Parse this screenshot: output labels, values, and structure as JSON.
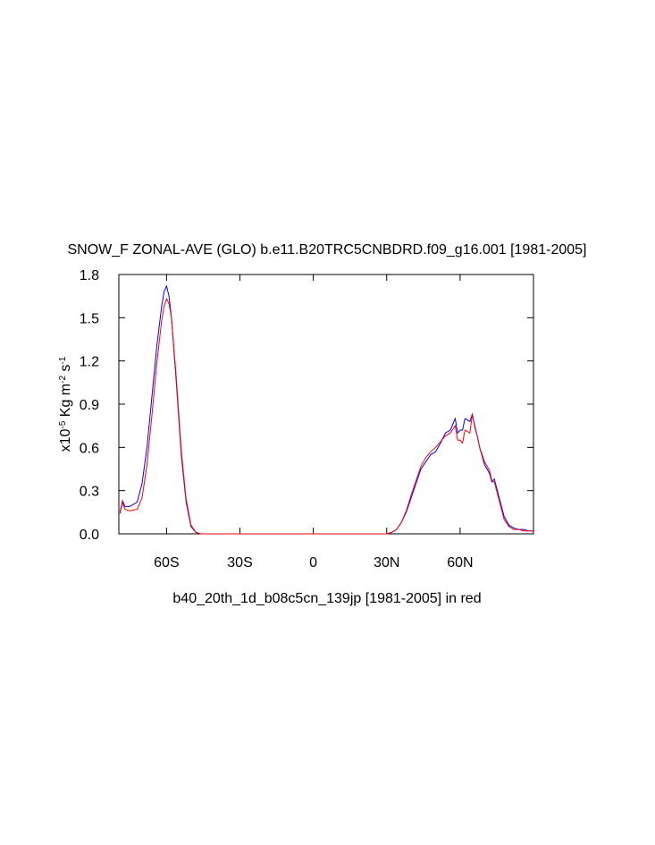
{
  "chart_data": {
    "type": "line",
    "title": "SNOW_F ZONAL-AVE (GLO) b.e11.B20TRC5CNBDRD.f09_g16.001 [1981-2005]",
    "xlabel": "b40_20th_1d_b08c5cn_139jp [1981-2005] in red",
    "ylabel": [
      "x10",
      "-5",
      " Kg m",
      "-2",
      " s",
      "-1"
    ],
    "x": [
      -79,
      -78,
      -77,
      -75,
      -72,
      -70,
      -68,
      -66,
      -64,
      -62,
      -61,
      -60,
      -59,
      -58,
      -56,
      -54,
      -52,
      -50,
      -48,
      -46,
      -44,
      -40,
      0,
      30,
      32,
      34,
      36,
      38,
      40,
      42,
      44,
      46,
      48,
      50,
      52,
      54,
      56,
      58,
      59,
      60,
      61,
      62,
      64,
      65,
      66,
      67,
      68,
      70,
      72,
      73,
      74,
      76,
      78,
      80,
      82,
      84,
      86,
      88,
      90
    ],
    "series": [
      {
        "name": "b.e11.B20TRC5CNBDRD.f09_g16.001",
        "color": "#0000ff",
        "values": [
          0.15,
          0.23,
          0.19,
          0.19,
          0.22,
          0.35,
          0.6,
          0.95,
          1.3,
          1.58,
          1.68,
          1.72,
          1.65,
          1.5,
          1.05,
          0.55,
          0.22,
          0.05,
          0.01,
          0,
          0,
          0,
          0,
          0,
          0.01,
          0.03,
          0.08,
          0.15,
          0.25,
          0.35,
          0.45,
          0.5,
          0.55,
          0.57,
          0.63,
          0.7,
          0.72,
          0.8,
          0.7,
          0.72,
          0.72,
          0.8,
          0.78,
          0.83,
          0.75,
          0.68,
          0.6,
          0.48,
          0.42,
          0.36,
          0.38,
          0.25,
          0.12,
          0.06,
          0.04,
          0.03,
          0.03,
          0.02,
          0.02
        ]
      },
      {
        "name": "b40_20th_1d_b08c5cn_139jp",
        "color": "#ff0000",
        "values": [
          0.14,
          0.22,
          0.17,
          0.16,
          0.17,
          0.25,
          0.48,
          0.82,
          1.18,
          1.48,
          1.58,
          1.63,
          1.6,
          1.5,
          1.08,
          0.58,
          0.24,
          0.06,
          0.01,
          0,
          0,
          0,
          0,
          0,
          0.01,
          0.03,
          0.08,
          0.16,
          0.27,
          0.37,
          0.47,
          0.53,
          0.57,
          0.6,
          0.64,
          0.68,
          0.7,
          0.75,
          0.65,
          0.65,
          0.63,
          0.72,
          0.7,
          0.83,
          0.74,
          0.68,
          0.6,
          0.5,
          0.44,
          0.37,
          0.36,
          0.23,
          0.1,
          0.05,
          0.03,
          0.03,
          0.02,
          0.02,
          0.02
        ]
      }
    ],
    "xlim": [
      -79.5,
      90
    ],
    "xticks": [
      {
        "value": -60,
        "label": "60S"
      },
      {
        "value": -30,
        "label": "30S"
      },
      0,
      {
        "value": 30,
        "label": "30N"
      },
      {
        "value": 60,
        "label": "60N"
      }
    ],
    "ylim": [
      0,
      1.8
    ],
    "yticks": [
      {
        "value": 0,
        "label": "0.0"
      },
      0.3,
      0.6,
      0.9,
      1.2,
      1.5,
      1.8
    ],
    "grid": false
  }
}
